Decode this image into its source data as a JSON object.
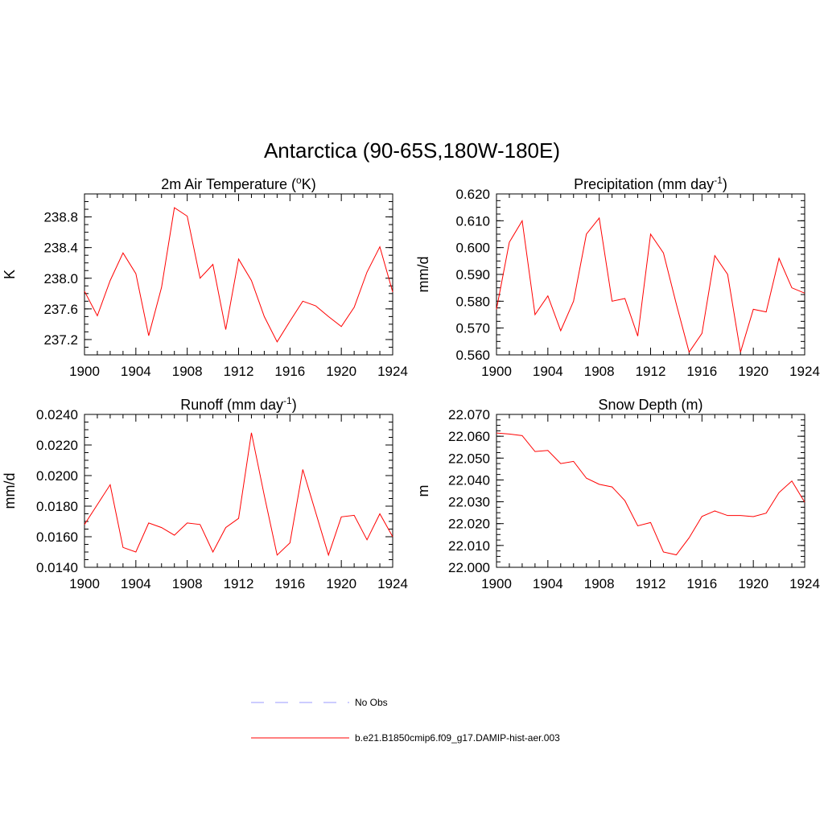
{
  "title": "Antarctica (90-65S,180W-180E)",
  "legend": {
    "items": [
      {
        "label": "No Obs",
        "color": "#9999ff",
        "style": "dashed"
      },
      {
        "label": "b.e21.B1850cmip6.f09_g17.DAMIP-hist-aer.003",
        "color": "#ff0000",
        "style": "solid"
      }
    ]
  },
  "chart_data": [
    {
      "type": "line",
      "title": "2m Air Temperature (",
      "title_sup": "o",
      "title_suffix": "K)",
      "ylabel": "K",
      "xlim": [
        1900,
        1924
      ],
      "ylim": [
        237.0,
        239.1
      ],
      "xticks": [
        1900,
        1904,
        1908,
        1912,
        1916,
        1920,
        1924
      ],
      "yticks": [
        237.2,
        237.6,
        238.0,
        238.4,
        238.8
      ],
      "ytick_labels": [
        "237.2",
        "237.6",
        "238.0",
        "238.4",
        "238.8"
      ],
      "x": [
        1900,
        1901,
        1902,
        1903,
        1904,
        1905,
        1906,
        1907,
        1908,
        1909,
        1910,
        1911,
        1912,
        1913,
        1914,
        1915,
        1916,
        1917,
        1918,
        1919,
        1920,
        1921,
        1922,
        1923,
        1924
      ],
      "series": [
        {
          "color": "#ff0000",
          "values": [
            237.83,
            237.51,
            237.97,
            238.33,
            238.06,
            237.25,
            237.88,
            238.92,
            238.81,
            238.0,
            238.18,
            237.33,
            238.25,
            237.97,
            237.5,
            237.17,
            237.44,
            237.7,
            237.64,
            237.5,
            237.37,
            237.62,
            238.08,
            238.41,
            237.82
          ]
        }
      ]
    },
    {
      "type": "line",
      "title": "Precipitation (mm day",
      "title_sup": "-1",
      "title_suffix": ")",
      "ylabel": "mm/d",
      "xlim": [
        1900,
        1924
      ],
      "ylim": [
        0.56,
        0.62
      ],
      "xticks": [
        1900,
        1904,
        1908,
        1912,
        1916,
        1920,
        1924
      ],
      "yticks": [
        0.56,
        0.57,
        0.58,
        0.59,
        0.6,
        0.61,
        0.62
      ],
      "ytick_labels": [
        "0.560",
        "0.570",
        "0.580",
        "0.590",
        "0.600",
        "0.610",
        "0.620"
      ],
      "x": [
        1900,
        1901,
        1902,
        1903,
        1904,
        1905,
        1906,
        1907,
        1908,
        1909,
        1910,
        1911,
        1912,
        1913,
        1914,
        1915,
        1916,
        1917,
        1918,
        1919,
        1920,
        1921,
        1922,
        1923,
        1924
      ],
      "series": [
        {
          "color": "#ff0000",
          "values": [
            0.577,
            0.602,
            0.61,
            0.575,
            0.582,
            0.569,
            0.58,
            0.605,
            0.611,
            0.58,
            0.581,
            0.567,
            0.605,
            0.598,
            0.579,
            0.561,
            0.568,
            0.597,
            0.59,
            0.561,
            0.577,
            0.576,
            0.596,
            0.585,
            0.583
          ]
        }
      ]
    },
    {
      "type": "line",
      "title": "Runoff (mm day",
      "title_sup": "-1",
      "title_suffix": ")",
      "ylabel": "mm/d",
      "xlim": [
        1900,
        1924
      ],
      "ylim": [
        0.014,
        0.024
      ],
      "xticks": [
        1900,
        1904,
        1908,
        1912,
        1916,
        1920,
        1924
      ],
      "yticks": [
        0.014,
        0.016,
        0.018,
        0.02,
        0.022,
        0.024
      ],
      "ytick_labels": [
        "0.0140",
        "0.0160",
        "0.0180",
        "0.0200",
        "0.0220",
        "0.0240"
      ],
      "x": [
        1900,
        1901,
        1902,
        1903,
        1904,
        1905,
        1906,
        1907,
        1908,
        1909,
        1910,
        1911,
        1912,
        1913,
        1914,
        1915,
        1916,
        1917,
        1918,
        1919,
        1920,
        1921,
        1922,
        1923,
        1924
      ],
      "series": [
        {
          "color": "#ff0000",
          "values": [
            0.0168,
            0.0181,
            0.0194,
            0.0153,
            0.015,
            0.0169,
            0.0166,
            0.0161,
            0.0169,
            0.0168,
            0.015,
            0.0166,
            0.0172,
            0.0228,
            0.0187,
            0.0148,
            0.0156,
            0.0204,
            0.0176,
            0.0148,
            0.0173,
            0.0174,
            0.0158,
            0.0175,
            0.016
          ]
        }
      ]
    },
    {
      "type": "line",
      "title": "Snow Depth (m)",
      "title_sup": "",
      "title_suffix": "",
      "ylabel": "m",
      "xlim": [
        1900,
        1924
      ],
      "ylim": [
        22.0,
        22.07
      ],
      "xticks": [
        1900,
        1904,
        1908,
        1912,
        1916,
        1920,
        1924
      ],
      "yticks": [
        22.0,
        22.01,
        22.02,
        22.03,
        22.04,
        22.05,
        22.06,
        22.07
      ],
      "ytick_labels": [
        "22.000",
        "22.010",
        "22.020",
        "22.030",
        "22.040",
        "22.050",
        "22.060",
        "22.070"
      ],
      "x": [
        1900,
        1901,
        1902,
        1903,
        1904,
        1905,
        1906,
        1907,
        1908,
        1909,
        1910,
        1911,
        1912,
        1913,
        1914,
        1915,
        1916,
        1917,
        1918,
        1919,
        1920,
        1921,
        1922,
        1923,
        1924
      ],
      "series": [
        {
          "color": "#ff0000",
          "values": [
            22.0615,
            22.061,
            22.0603,
            22.053,
            22.0535,
            22.0475,
            22.0485,
            22.0408,
            22.038,
            22.0368,
            22.0305,
            22.019,
            22.0205,
            22.007,
            22.0057,
            22.0135,
            22.0233,
            22.0258,
            22.0237,
            22.0237,
            22.0232,
            22.0248,
            22.0342,
            22.0395,
            22.0298
          ]
        }
      ]
    }
  ]
}
